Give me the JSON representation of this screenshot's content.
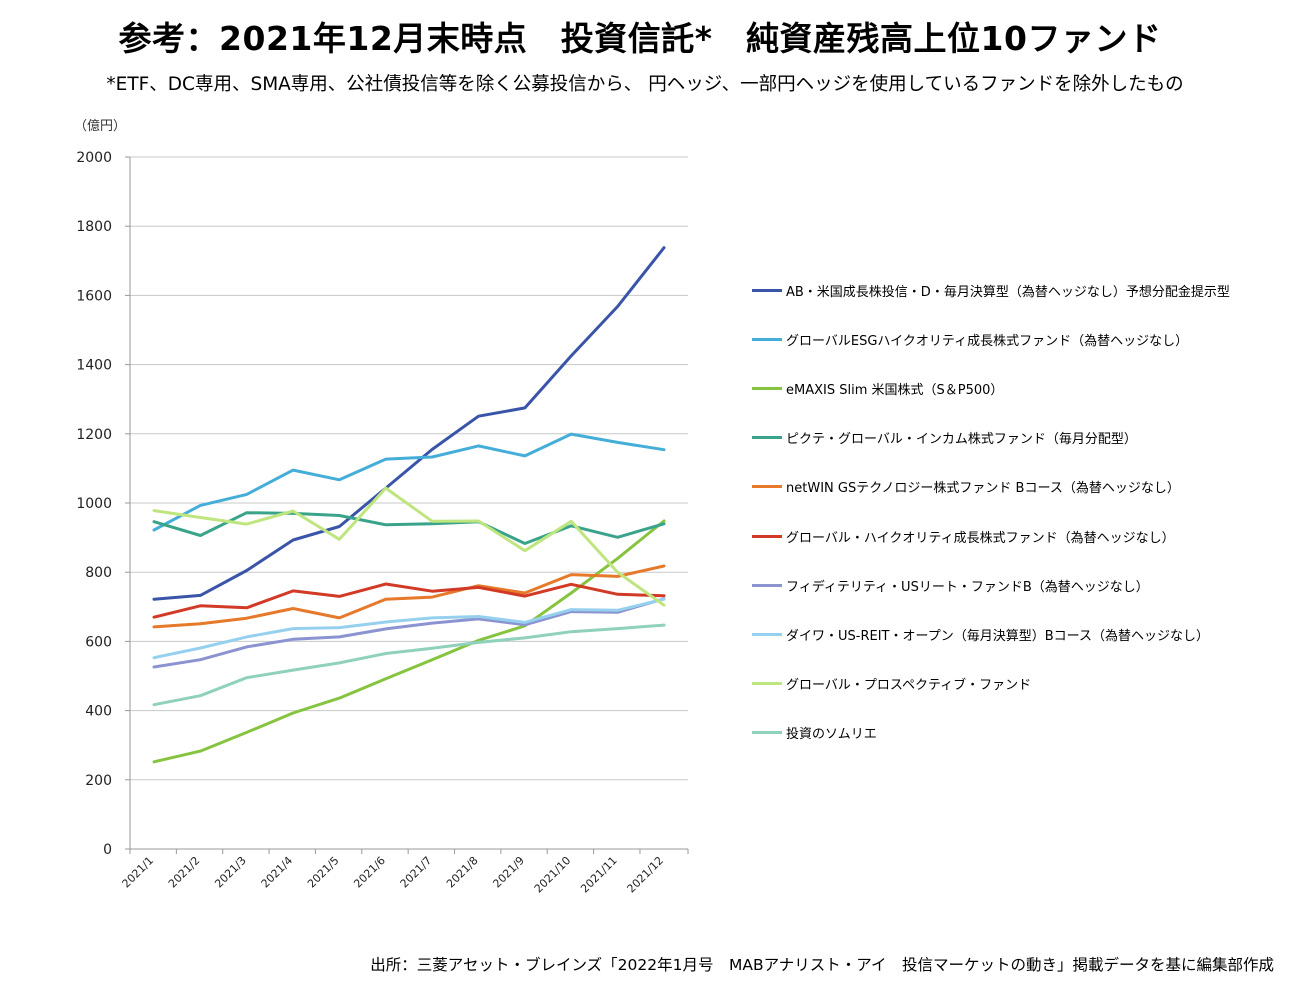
{
  "title": "参考：2021年12月末時点　投資信託*　純資産残高上位10ファンド",
  "subtitle": "*ETF、DC専用、SMA専用、公社債投信等を除く公募投信から、 円ヘッジ、一部円ヘッジを使用しているファンドを除外したもの",
  "source": "出所：三菱アセット・ブレインズ「2022年1月号　MABアナリスト・アイ　投信マーケットの動き」掲載データを基に編集部作成",
  "chart_data": {
    "type": "line",
    "title": "",
    "ylabel": "（億円）",
    "xlabel": "",
    "ylim": [
      0,
      2000
    ],
    "yticks": [
      0,
      200,
      400,
      600,
      800,
      1000,
      1200,
      1400,
      1600,
      1800,
      2000
    ],
    "grid": true,
    "legend_position": "right",
    "categories": [
      "2021/1",
      "2021/2",
      "2021/3",
      "2021/4",
      "2021/5",
      "2021/6",
      "2021/7",
      "2021/8",
      "2021/9",
      "2021/10",
      "2021/11",
      "2021/12"
    ],
    "series": [
      {
        "name": "AB・米国成長株投信・D・毎月決算型（為替ヘッジなし）予想分配金提示型",
        "color": "#3a54a8",
        "values": [
          722,
          733,
          805,
          893,
          932,
          1043,
          1155,
          1251,
          1275,
          1425,
          1568,
          1738
        ]
      },
      {
        "name": "グローバルESGハイクオリティ成長株式ファンド（為替ヘッジなし）",
        "color": "#45aed8",
        "values": [
          922,
          993,
          1025,
          1095,
          1067,
          1127,
          1133,
          1165,
          1136,
          1199,
          1175,
          1154
        ]
      },
      {
        "name": "eMAXIS Slim 米国株式（S＆P500）",
        "color": "#86c440",
        "values": [
          252,
          283,
          337,
          393,
          436,
          492,
          547,
          603,
          645,
          740,
          840,
          948
        ]
      },
      {
        "name": "ピクテ・グローバル・インカム株式ファンド（毎月分配型）",
        "color": "#3aa48a",
        "values": [
          946,
          906,
          972,
          970,
          964,
          937,
          940,
          946,
          883,
          934,
          901,
          940
        ]
      },
      {
        "name": "netWIN GSテクノロジー株式ファンド Bコース（為替ヘッジなし）",
        "color": "#e6792a",
        "values": [
          642,
          651,
          667,
          695,
          668,
          722,
          728,
          761,
          740,
          793,
          788,
          818
        ]
      },
      {
        "name": "グローバル・ハイクオリティ成長株式ファンド（為替ヘッジなし）",
        "color": "#d23a26",
        "values": [
          670,
          703,
          697,
          746,
          730,
          766,
          745,
          756,
          731,
          765,
          736,
          732
        ]
      },
      {
        "name": "フィディテリティ・USリート・ファンドB（為替ヘッジなし）",
        "color": "#8b93d0",
        "values": [
          526,
          547,
          584,
          606,
          613,
          636,
          653,
          665,
          648,
          686,
          684,
          723
        ]
      },
      {
        "name": "ダイワ・US-REIT・オープン（毎月決算型）Bコース（為替ヘッジなし）",
        "color": "#95d0ef",
        "values": [
          553,
          581,
          613,
          637,
          640,
          656,
          668,
          672,
          655,
          692,
          690,
          722
        ]
      },
      {
        "name": "グローバル・プロスペクティブ・ファンド",
        "color": "#bfe57f",
        "values": [
          978,
          958,
          939,
          977,
          895,
          1043,
          947,
          948,
          862,
          947,
          800,
          705
        ]
      },
      {
        "name": "投資のソムリエ",
        "color": "#8fd1bb",
        "values": [
          417,
          443,
          495,
          517,
          538,
          565,
          580,
          597,
          610,
          628,
          637,
          647
        ]
      }
    ]
  }
}
